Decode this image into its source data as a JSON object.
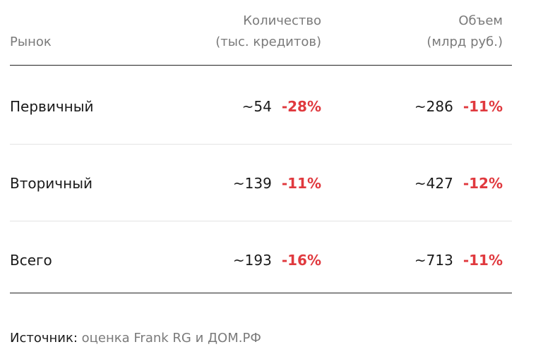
{
  "table": {
    "header": [
      [
        "Рынок"
      ],
      [
        "Количество",
        "(тыс. кредитов)"
      ],
      [
        "Объем",
        "(млрд руб.)"
      ]
    ],
    "rows": [
      {
        "label": "Первичный",
        "cells": [
          {
            "value": "~54",
            "change": "-28%"
          },
          {
            "value": "~286",
            "change": "-11%"
          }
        ]
      },
      {
        "label": "Вторичный",
        "cells": [
          {
            "value": "~139",
            "change": "-11%"
          },
          {
            "value": "~427",
            "change": "-12%"
          }
        ]
      },
      {
        "label": "Всего",
        "cells": [
          {
            "value": "~193",
            "change": "-16%"
          },
          {
            "value": "~713",
            "change": "-11%"
          }
        ]
      }
    ]
  },
  "source": {
    "label": "Источник:",
    "text": "оценка Frank RG и ДОМ.РФ"
  }
}
